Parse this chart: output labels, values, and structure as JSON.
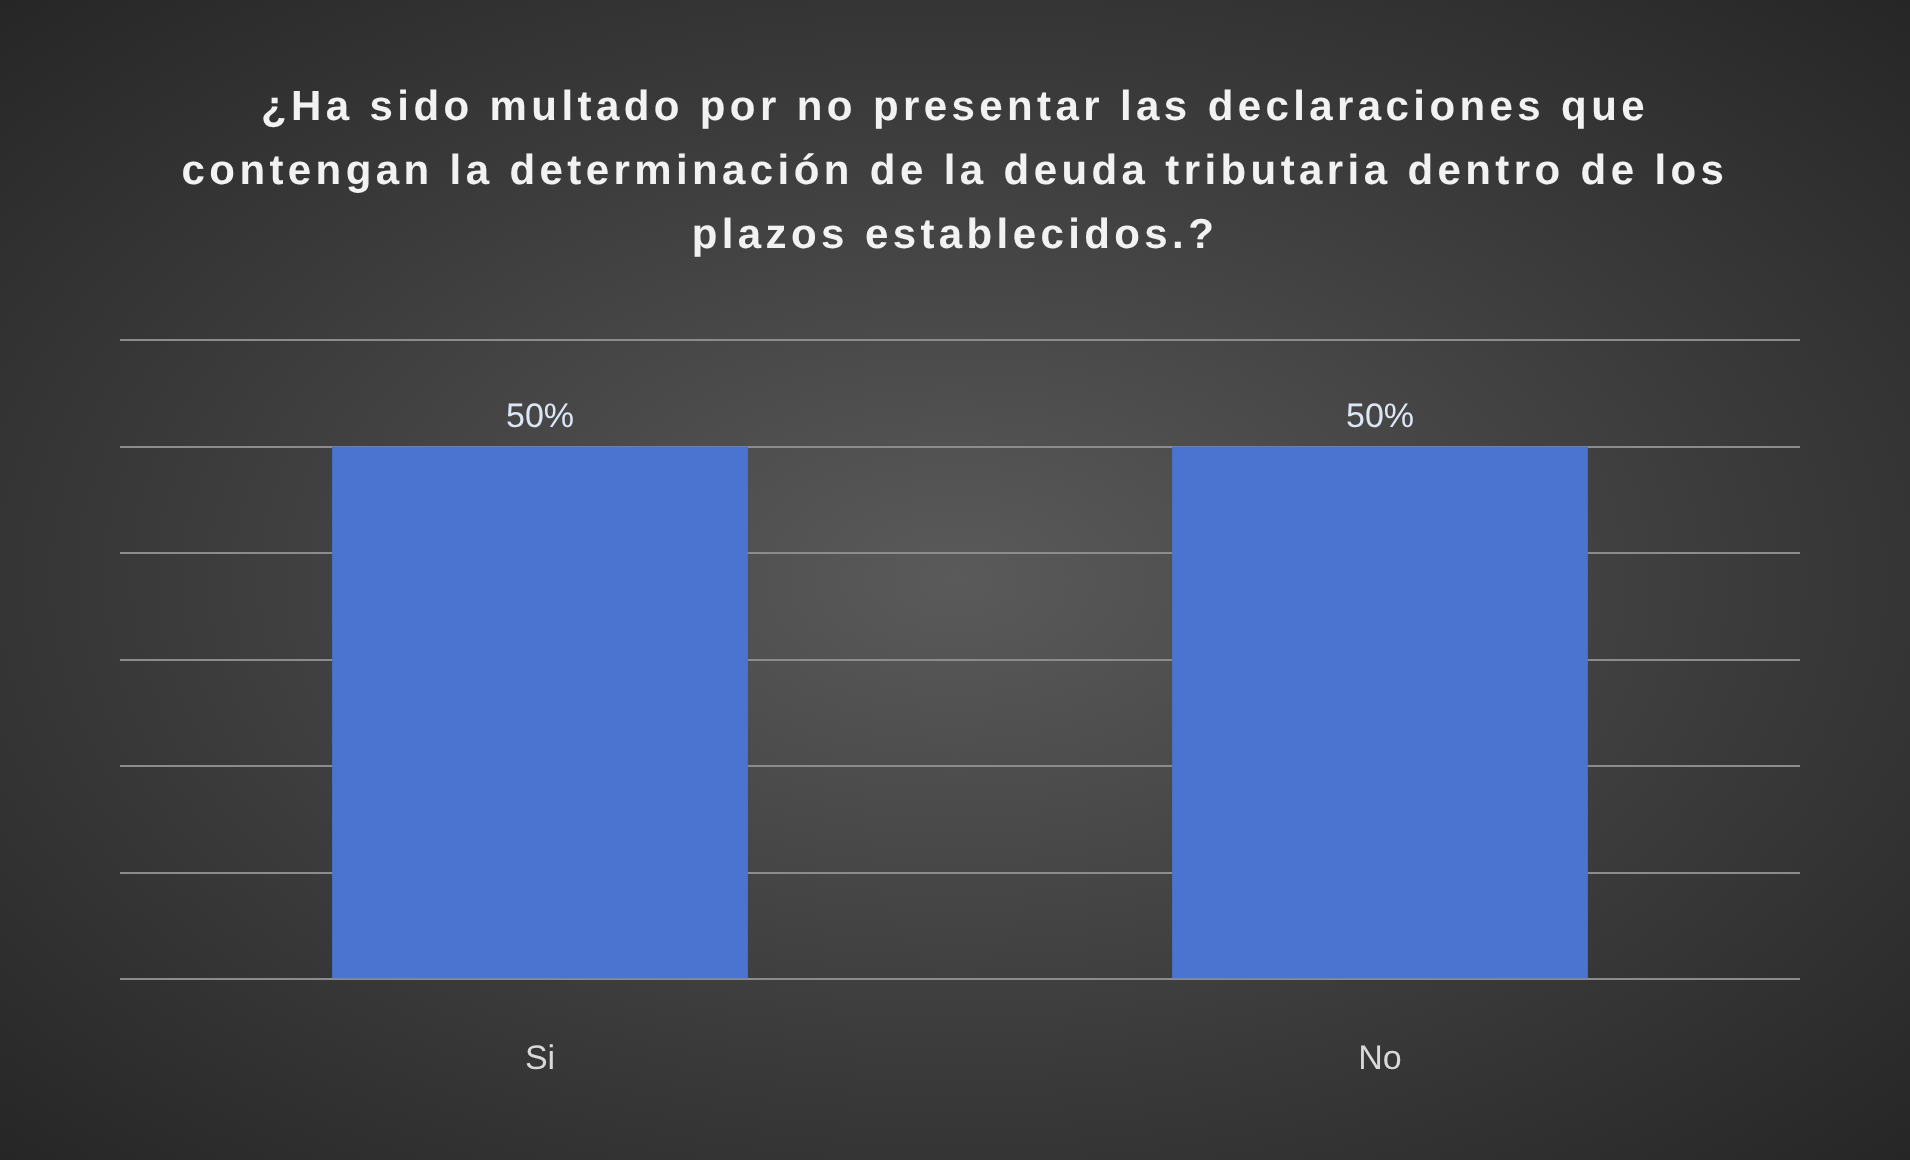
{
  "chart_data": {
    "type": "bar",
    "title": "¿Ha sido multado por no presentar las declaraciones que contengan la determinación de la deuda tributaria dentro de los plazos establecidos.?",
    "categories": [
      "Si",
      "No"
    ],
    "values": [
      50,
      50
    ],
    "value_labels": [
      "50%",
      "50%"
    ],
    "color": "#4a74d0",
    "ylim": [
      0,
      60
    ],
    "yticks": [
      {
        "value": 0,
        "label": null
      },
      {
        "value": 10,
        "label": null
      },
      {
        "value": 20,
        "label": null
      },
      {
        "value": 30,
        "label": null
      },
      {
        "value": 40,
        "label": null
      },
      {
        "value": 50,
        "label": null
      },
      {
        "value": 60,
        "label": null
      }
    ],
    "grid": "y",
    "tick_labels": "x",
    "legend": false
  }
}
